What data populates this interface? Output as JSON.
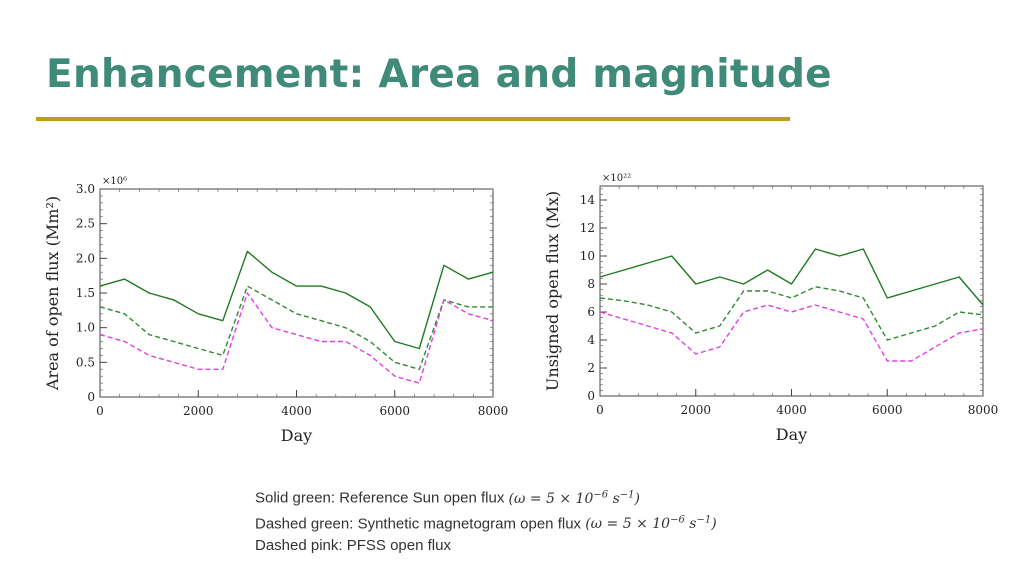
{
  "title": "Enhancement: Area and magnitude",
  "caption": [
    {
      "text": "Solid green: Reference Sun open flux ",
      "math": "(ω = 5 × 10",
      "exp": "−6",
      "unit": " s",
      "unit_exp": "−1",
      "close": ")"
    },
    {
      "text": "Dashed green: Synthetic magnetogram open flux ",
      "math": "(ω = 5 × 10",
      "exp": "−6",
      "unit": " s",
      "unit_exp": "−1",
      "close": ")"
    },
    {
      "text": "Dashed pink: PFSS open flux",
      "math": "",
      "exp": "",
      "unit": "",
      "unit_exp": "",
      "close": ""
    }
  ],
  "colors": {
    "title": "#3f8a78",
    "rule": "#c39b1c",
    "solid_green": "#1f7a1f",
    "dashed_green": "#2e8b2e",
    "dashed_pink": "#e040e0"
  },
  "chart_data": [
    {
      "type": "line",
      "xlabel": "Day",
      "ylabel": "Area of open flux (Mm²)",
      "multiplier": "×10⁶",
      "xlim": [
        0,
        8000
      ],
      "ylim": [
        0,
        3.0
      ],
      "xticks": [
        0,
        2000,
        4000,
        6000,
        8000
      ],
      "yticks": [
        0,
        0.5,
        1.0,
        1.5,
        2.0,
        2.5,
        3.0
      ],
      "ytick_labels": [
        "0",
        "0.5",
        "1.0",
        "1.5",
        "2.0",
        "2.5",
        "3.0"
      ],
      "x": [
        0,
        500,
        1000,
        1500,
        2000,
        2500,
        3000,
        3500,
        4000,
        4500,
        5000,
        5500,
        6000,
        6500,
        7000,
        7500,
        8000
      ],
      "series": [
        {
          "style": "solid",
          "color": "#1f7a1f",
          "values": [
            1.6,
            1.7,
            1.5,
            1.4,
            1.2,
            1.1,
            2.1,
            1.8,
            1.6,
            1.6,
            1.5,
            1.3,
            0.8,
            0.7,
            1.9,
            1.7,
            1.8
          ]
        },
        {
          "style": "dashed",
          "color": "#2e8b2e",
          "values": [
            1.3,
            1.2,
            0.9,
            0.8,
            0.7,
            0.6,
            1.6,
            1.4,
            1.2,
            1.1,
            1.0,
            0.8,
            0.5,
            0.4,
            1.4,
            1.3,
            1.3
          ]
        },
        {
          "style": "dashed",
          "color": "#e040e0",
          "values": [
            0.9,
            0.8,
            0.6,
            0.5,
            0.4,
            0.4,
            1.5,
            1.0,
            0.9,
            0.8,
            0.8,
            0.6,
            0.3,
            0.2,
            1.4,
            1.2,
            1.1
          ]
        }
      ]
    },
    {
      "type": "line",
      "xlabel": "Day",
      "ylabel": "Unsigned open flux (Mx)",
      "multiplier": "×10²²",
      "xlim": [
        0,
        8000
      ],
      "ylim": [
        0,
        15
      ],
      "xticks": [
        0,
        2000,
        4000,
        6000,
        8000
      ],
      "yticks": [
        0,
        2,
        4,
        6,
        8,
        10,
        12,
        14
      ],
      "ytick_labels": [
        "0",
        "2",
        "4",
        "6",
        "8",
        "10",
        "12",
        "14"
      ],
      "x": [
        0,
        500,
        1000,
        1500,
        2000,
        2500,
        3000,
        3500,
        4000,
        4500,
        5000,
        5500,
        6000,
        6500,
        7000,
        7500,
        8000
      ],
      "series": [
        {
          "style": "solid",
          "color": "#1f7a1f",
          "values": [
            8.5,
            9.0,
            9.5,
            10.0,
            8.0,
            8.5,
            8.0,
            9.0,
            8.0,
            10.5,
            10.0,
            10.5,
            7.0,
            7.5,
            8.0,
            8.5,
            6.5
          ]
        },
        {
          "style": "dashed",
          "color": "#2e8b2e",
          "values": [
            7.0,
            6.8,
            6.5,
            6.0,
            4.5,
            5.0,
            7.5,
            7.5,
            7.0,
            7.8,
            7.5,
            7.0,
            4.0,
            4.5,
            5.0,
            6.0,
            5.8
          ]
        },
        {
          "style": "dashed",
          "color": "#e040e0",
          "values": [
            6.0,
            5.5,
            5.0,
            4.5,
            3.0,
            3.5,
            6.0,
            6.5,
            6.0,
            6.5,
            6.0,
            5.5,
            2.5,
            2.5,
            3.5,
            4.5,
            4.8
          ]
        }
      ]
    }
  ]
}
